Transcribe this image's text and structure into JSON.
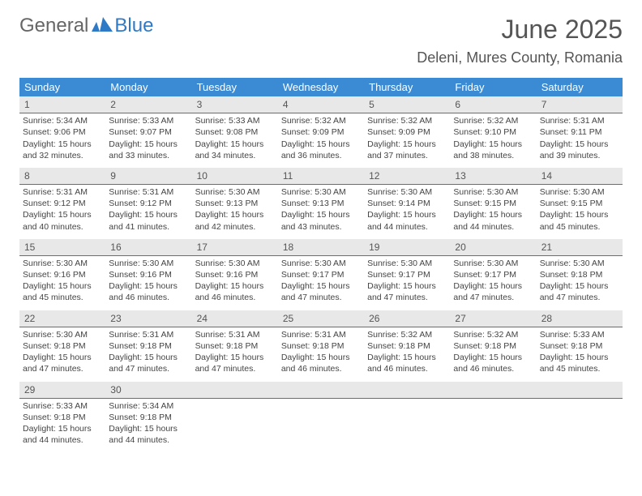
{
  "brand": {
    "part1": "General",
    "part2": "Blue"
  },
  "title": "June 2025",
  "location": "Deleni, Mures County, Romania",
  "colors": {
    "header_bg": "#3b8bd4",
    "header_text": "#ffffff",
    "rule": "#2f7ac6",
    "daynum_bg": "#e8e8e8",
    "body_text": "#444444",
    "page_bg": "#ffffff"
  },
  "weekdays": [
    "Sunday",
    "Monday",
    "Tuesday",
    "Wednesday",
    "Thursday",
    "Friday",
    "Saturday"
  ],
  "days": [
    {
      "n": 1,
      "sunrise": "5:34 AM",
      "sunset": "9:06 PM",
      "day_h": 15,
      "day_m": 32
    },
    {
      "n": 2,
      "sunrise": "5:33 AM",
      "sunset": "9:07 PM",
      "day_h": 15,
      "day_m": 33
    },
    {
      "n": 3,
      "sunrise": "5:33 AM",
      "sunset": "9:08 PM",
      "day_h": 15,
      "day_m": 34
    },
    {
      "n": 4,
      "sunrise": "5:32 AM",
      "sunset": "9:09 PM",
      "day_h": 15,
      "day_m": 36
    },
    {
      "n": 5,
      "sunrise": "5:32 AM",
      "sunset": "9:09 PM",
      "day_h": 15,
      "day_m": 37
    },
    {
      "n": 6,
      "sunrise": "5:32 AM",
      "sunset": "9:10 PM",
      "day_h": 15,
      "day_m": 38
    },
    {
      "n": 7,
      "sunrise": "5:31 AM",
      "sunset": "9:11 PM",
      "day_h": 15,
      "day_m": 39
    },
    {
      "n": 8,
      "sunrise": "5:31 AM",
      "sunset": "9:12 PM",
      "day_h": 15,
      "day_m": 40
    },
    {
      "n": 9,
      "sunrise": "5:31 AM",
      "sunset": "9:12 PM",
      "day_h": 15,
      "day_m": 41
    },
    {
      "n": 10,
      "sunrise": "5:30 AM",
      "sunset": "9:13 PM",
      "day_h": 15,
      "day_m": 42
    },
    {
      "n": 11,
      "sunrise": "5:30 AM",
      "sunset": "9:13 PM",
      "day_h": 15,
      "day_m": 43
    },
    {
      "n": 12,
      "sunrise": "5:30 AM",
      "sunset": "9:14 PM",
      "day_h": 15,
      "day_m": 44
    },
    {
      "n": 13,
      "sunrise": "5:30 AM",
      "sunset": "9:15 PM",
      "day_h": 15,
      "day_m": 44
    },
    {
      "n": 14,
      "sunrise": "5:30 AM",
      "sunset": "9:15 PM",
      "day_h": 15,
      "day_m": 45
    },
    {
      "n": 15,
      "sunrise": "5:30 AM",
      "sunset": "9:16 PM",
      "day_h": 15,
      "day_m": 45
    },
    {
      "n": 16,
      "sunrise": "5:30 AM",
      "sunset": "9:16 PM",
      "day_h": 15,
      "day_m": 46
    },
    {
      "n": 17,
      "sunrise": "5:30 AM",
      "sunset": "9:16 PM",
      "day_h": 15,
      "day_m": 46
    },
    {
      "n": 18,
      "sunrise": "5:30 AM",
      "sunset": "9:17 PM",
      "day_h": 15,
      "day_m": 47
    },
    {
      "n": 19,
      "sunrise": "5:30 AM",
      "sunset": "9:17 PM",
      "day_h": 15,
      "day_m": 47
    },
    {
      "n": 20,
      "sunrise": "5:30 AM",
      "sunset": "9:17 PM",
      "day_h": 15,
      "day_m": 47
    },
    {
      "n": 21,
      "sunrise": "5:30 AM",
      "sunset": "9:18 PM",
      "day_h": 15,
      "day_m": 47
    },
    {
      "n": 22,
      "sunrise": "5:30 AM",
      "sunset": "9:18 PM",
      "day_h": 15,
      "day_m": 47
    },
    {
      "n": 23,
      "sunrise": "5:31 AM",
      "sunset": "9:18 PM",
      "day_h": 15,
      "day_m": 47
    },
    {
      "n": 24,
      "sunrise": "5:31 AM",
      "sunset": "9:18 PM",
      "day_h": 15,
      "day_m": 47
    },
    {
      "n": 25,
      "sunrise": "5:31 AM",
      "sunset": "9:18 PM",
      "day_h": 15,
      "day_m": 46
    },
    {
      "n": 26,
      "sunrise": "5:32 AM",
      "sunset": "9:18 PM",
      "day_h": 15,
      "day_m": 46
    },
    {
      "n": 27,
      "sunrise": "5:32 AM",
      "sunset": "9:18 PM",
      "day_h": 15,
      "day_m": 46
    },
    {
      "n": 28,
      "sunrise": "5:33 AM",
      "sunset": "9:18 PM",
      "day_h": 15,
      "day_m": 45
    },
    {
      "n": 29,
      "sunrise": "5:33 AM",
      "sunset": "9:18 PM",
      "day_h": 15,
      "day_m": 44
    },
    {
      "n": 30,
      "sunrise": "5:34 AM",
      "sunset": "9:18 PM",
      "day_h": 15,
      "day_m": 44
    }
  ],
  "labels": {
    "sunrise": "Sunrise:",
    "sunset": "Sunset:",
    "daylight_prefix": "Daylight:",
    "hours_word": "hours",
    "and_word": "and",
    "minutes_word": "minutes."
  },
  "layout": {
    "columns": 7,
    "start_offset": 0,
    "total_days": 30
  }
}
